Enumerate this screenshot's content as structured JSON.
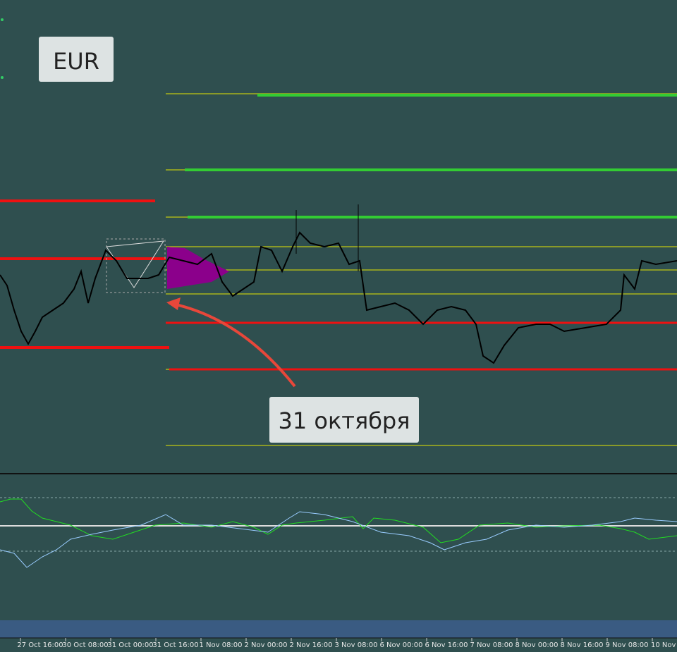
{
  "labels": {
    "symbol": "EUR",
    "annotation": "31 октября"
  },
  "time_axis": [
    "27 Oct 16:00",
    "30 Oct 08:00",
    "31 Oct 00:00",
    "31 Oct 16:00",
    "1 Nov 08:00",
    "2 Nov 00:00",
    "2 Nov 16:00",
    "3 Nov 08:00",
    "6 Nov 00:00",
    "6 Nov 16:00",
    "7 Nov 08:00",
    "8 Nov 00:00",
    "8 Nov 16:00",
    "9 Nov 08:00",
    "10 Nov"
  ]
}
